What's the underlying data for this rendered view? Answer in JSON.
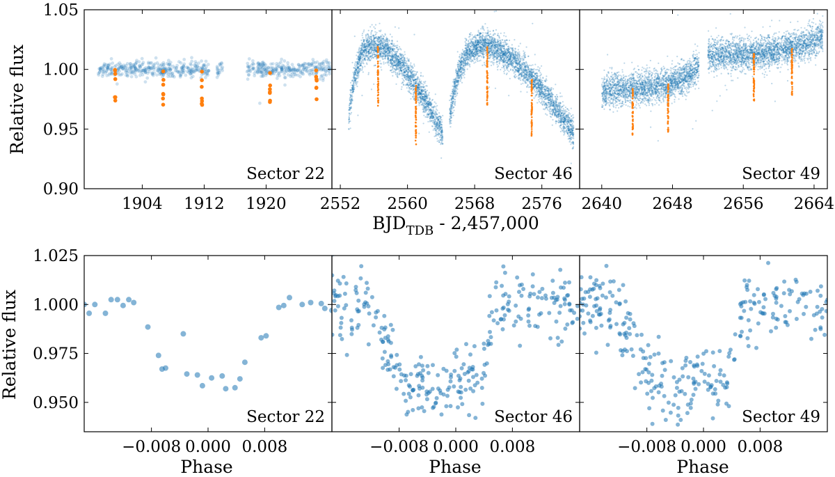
{
  "figure": {
    "top_ylabel": "Relative flux",
    "bottom_ylabel": "Relative flux",
    "top_xlabel_main": "BJD",
    "top_xlabel_sub": "TDB",
    "top_xlabel_rest": " - 2,457,000",
    "bottom_xlabel": "Phase"
  },
  "colors": {
    "raw": "#1f77b4",
    "transit": "#ff7f0e"
  },
  "chart_data": [
    {
      "type": "scatter",
      "row": "top",
      "sector_label": "Sector 22",
      "xlim": [
        1896.5,
        1928.5
      ],
      "ylim": [
        0.9,
        1.05
      ],
      "xticks": [
        1904,
        1912,
        1920
      ],
      "xtick_labels": [
        "1904",
        "1912",
        "1920"
      ],
      "yticks": [
        0.9,
        0.95,
        1.0,
        1.05
      ],
      "ytick_labels": [
        "0.90",
        "0.95",
        "1.00",
        "1.05"
      ],
      "segments": [
        [
          1898.3,
          1912.6
        ],
        [
          1913.6,
          1914.4
        ],
        [
          1917.5,
          1928.3
        ]
      ],
      "baseline": "flat",
      "level": 1.0,
      "scatter": 0.0035,
      "density": 25,
      "transit_times": [
        1900.5,
        1906.7,
        1911.7,
        1920.5,
        1926.5
      ],
      "transit_depth": 0.03,
      "transit_style": "dots"
    },
    {
      "type": "scatter",
      "row": "top",
      "sector_label": "Sector 46",
      "xlim": [
        2551.0,
        2580.5
      ],
      "ylim": [
        0.9,
        1.05
      ],
      "xticks": [
        2552,
        2560,
        2568,
        2576
      ],
      "xtick_labels": [
        "2552",
        "2560",
        "2568",
        "2576"
      ],
      "segments": [
        [
          2553.0,
          2564.2
        ],
        [
          2565.0,
          2579.8
        ]
      ],
      "baseline": "ramp",
      "peak": 1.02,
      "start": 0.96,
      "end_level": 0.945,
      "scatter": 0.006,
      "density": 220,
      "transit_times": [
        2556.5,
        2561.0,
        2569.5,
        2574.8
      ],
      "transit_depth": 0.05,
      "transit_style": "streak"
    },
    {
      "type": "scatter",
      "row": "top",
      "sector_label": "Sector 49",
      "xlim": [
        2637.5,
        2665.5
      ],
      "ylim": [
        0.9,
        1.05
      ],
      "xticks": [
        2640,
        2648,
        2656,
        2664
      ],
      "xtick_labels": [
        "2640",
        "2648",
        "2656",
        "2664"
      ],
      "segments": [
        [
          2640.0,
          2651.0
        ],
        [
          2652.0,
          2665.0
        ]
      ],
      "baseline": "curve",
      "scatter": 0.0065,
      "density": 220,
      "transit_times": [
        2643.5,
        2647.5,
        2657.2,
        2661.5
      ],
      "transit_depth": 0.04,
      "transit_style": "streak"
    },
    {
      "type": "scatter",
      "row": "bottom",
      "sector_label": "Sector 22",
      "xlim": [
        -0.0175,
        0.0175
      ],
      "ylim": [
        0.935,
        1.025
      ],
      "xticks": [
        -0.008,
        0.0,
        0.008
      ],
      "xtick_labels": [
        "−0.008",
        "0.000",
        "0.008"
      ],
      "yticks": [
        0.95,
        0.975,
        1.0,
        1.025
      ],
      "ytick_labels": [
        "0.950",
        "0.975",
        "1.000",
        "1.025"
      ],
      "points": [
        [
          -0.0175,
          1.0
        ],
        [
          -0.0168,
          0.9955
        ],
        [
          -0.016,
          1.0
        ],
        [
          -0.0145,
          0.9955
        ],
        [
          -0.0137,
          1.0025
        ],
        [
          -0.0128,
          1.0025
        ],
        [
          -0.012,
          0.9995
        ],
        [
          -0.0112,
          1.0025
        ],
        [
          -0.0105,
          1.001
        ],
        [
          -0.0085,
          0.9885
        ],
        [
          -0.007,
          0.974
        ],
        [
          -0.0065,
          0.967
        ],
        [
          -0.006,
          0.9675
        ],
        [
          -0.0035,
          0.985
        ],
        [
          -0.003,
          0.9645
        ],
        [
          -0.0015,
          0.964
        ],
        [
          -0.0008,
          0.9585
        ],
        [
          0.0005,
          0.9625
        ],
        [
          0.002,
          0.9635
        ],
        [
          0.0025,
          0.957
        ],
        [
          0.0038,
          0.9575
        ],
        [
          0.0045,
          0.962
        ],
        [
          0.0052,
          0.9705
        ],
        [
          0.0075,
          0.983
        ],
        [
          0.0082,
          0.984
        ],
        [
          0.01,
          0.9985
        ],
        [
          0.0107,
          0.9995
        ],
        [
          0.0115,
          1.0035
        ],
        [
          0.0133,
          1.0
        ],
        [
          0.0145,
          1.001
        ],
        [
          0.016,
          1.0005
        ],
        [
          0.0165,
          0.998
        ],
        [
          0.0175,
          0.997
        ]
      ]
    },
    {
      "type": "scatter",
      "row": "bottom",
      "sector_label": "Sector 46",
      "xlim": [
        -0.0175,
        0.0175
      ],
      "ylim": [
        0.935,
        1.025
      ],
      "xticks": [
        -0.008,
        0.0,
        0.008
      ],
      "xtick_labels": [
        "−0.008",
        "0.000",
        "0.008"
      ],
      "n_points": 300,
      "depth": 0.96,
      "scatter": 0.0085
    },
    {
      "type": "scatter",
      "row": "bottom",
      "sector_label": "Sector 49",
      "xlim": [
        -0.0175,
        0.0175
      ],
      "ylim": [
        0.935,
        1.025
      ],
      "xticks": [
        -0.008,
        0.0,
        0.008
      ],
      "xtick_labels": [
        "−0.008",
        "0.000",
        "0.008"
      ],
      "n_points": 300,
      "depth": 0.96,
      "scatter": 0.009
    }
  ]
}
